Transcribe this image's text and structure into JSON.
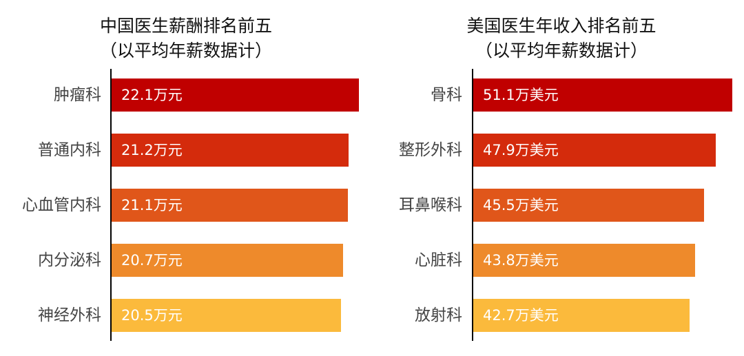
{
  "chart_data": [
    {
      "type": "bar",
      "orientation": "horizontal",
      "title": "中国医生薪酬排名前五",
      "subtitle": "（以平均年薪数据计）",
      "categories": [
        "肿瘤科",
        "普通内科",
        "心血管内科",
        "内分泌科",
        "神经外科"
      ],
      "values": [
        22.1,
        21.2,
        21.1,
        20.7,
        20.5
      ],
      "value_labels": [
        "22.1万元",
        "21.2万元",
        "21.1万元",
        "20.7万元",
        "20.5万元"
      ],
      "colors": [
        "#C00000",
        "#D42B0C",
        "#E0561A",
        "#EE8A2B",
        "#FBBA3C"
      ],
      "xlim": [
        0,
        22.1
      ],
      "grid": false,
      "legend": "none"
    },
    {
      "type": "bar",
      "orientation": "horizontal",
      "title": "美国医生年收入排名前五",
      "subtitle": "（以平均年薪数据计）",
      "categories": [
        "骨科",
        "整形外科",
        "耳鼻喉科",
        "心脏科",
        "放射科"
      ],
      "values": [
        51.1,
        47.9,
        45.5,
        43.8,
        42.7
      ],
      "value_labels": [
        "51.1万美元",
        "47.9万美元",
        "45.5万美元",
        "43.8万美元",
        "42.7万美元"
      ],
      "colors": [
        "#C00000",
        "#D42B0C",
        "#E0561A",
        "#EE8A2B",
        "#FBBA3C"
      ],
      "xlim": [
        0,
        51.1
      ],
      "grid": false,
      "legend": "none"
    }
  ]
}
